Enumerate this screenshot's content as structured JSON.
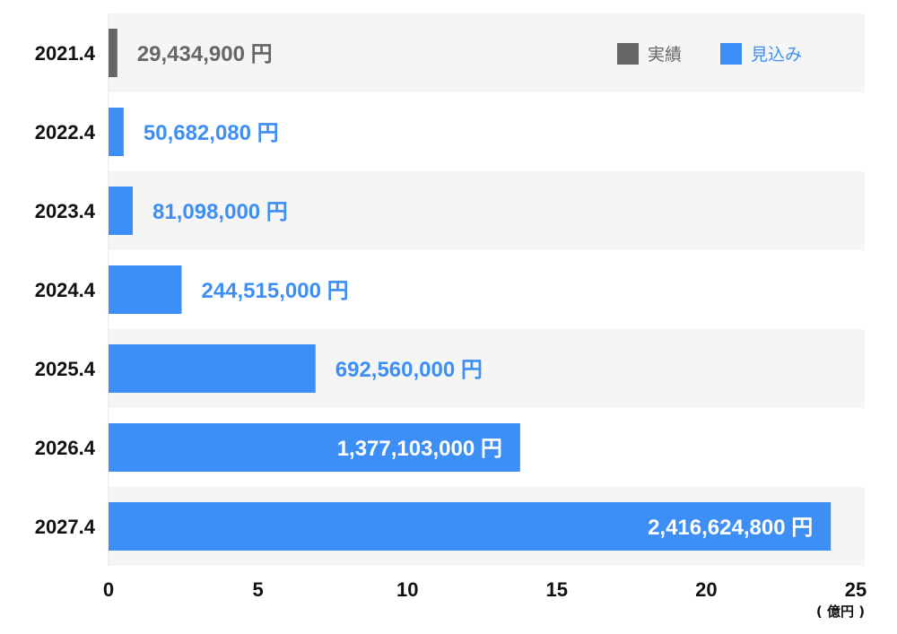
{
  "chart_data": {
    "type": "bar",
    "orientation": "horizontal",
    "categories": [
      "2021.4",
      "2022.4",
      "2023.4",
      "2024.4",
      "2025.4",
      "2026.4",
      "2027.4"
    ],
    "values": [
      0.294349,
      0.5068208,
      0.81098,
      2.44515,
      6.9256,
      13.77103,
      24.166248
    ],
    "labels": [
      "29,434,900 円",
      "50,682,080 円",
      "81,098,000 円",
      "244,515,000 円",
      "692,560,000  円",
      "1,377,103,000 円",
      "2,416,624,800 円"
    ],
    "series_type": [
      "実績",
      "見込み",
      "見込み",
      "見込み",
      "見込み",
      "見込み",
      "見込み"
    ],
    "xlim": [
      0,
      25
    ],
    "xticks": [
      0,
      5,
      10,
      15,
      20,
      25
    ],
    "unit_label": "( 億円 )",
    "legend": [
      {
        "name": "実績",
        "color": "#666666"
      },
      {
        "name": "見込み",
        "color": "#3d8ff5"
      }
    ],
    "legend_position": "top-right",
    "colors": {
      "actual": "#666666",
      "forecast": "#3d8ff5",
      "band": "#f5f5f5",
      "inner_label": "#ffffff"
    }
  }
}
